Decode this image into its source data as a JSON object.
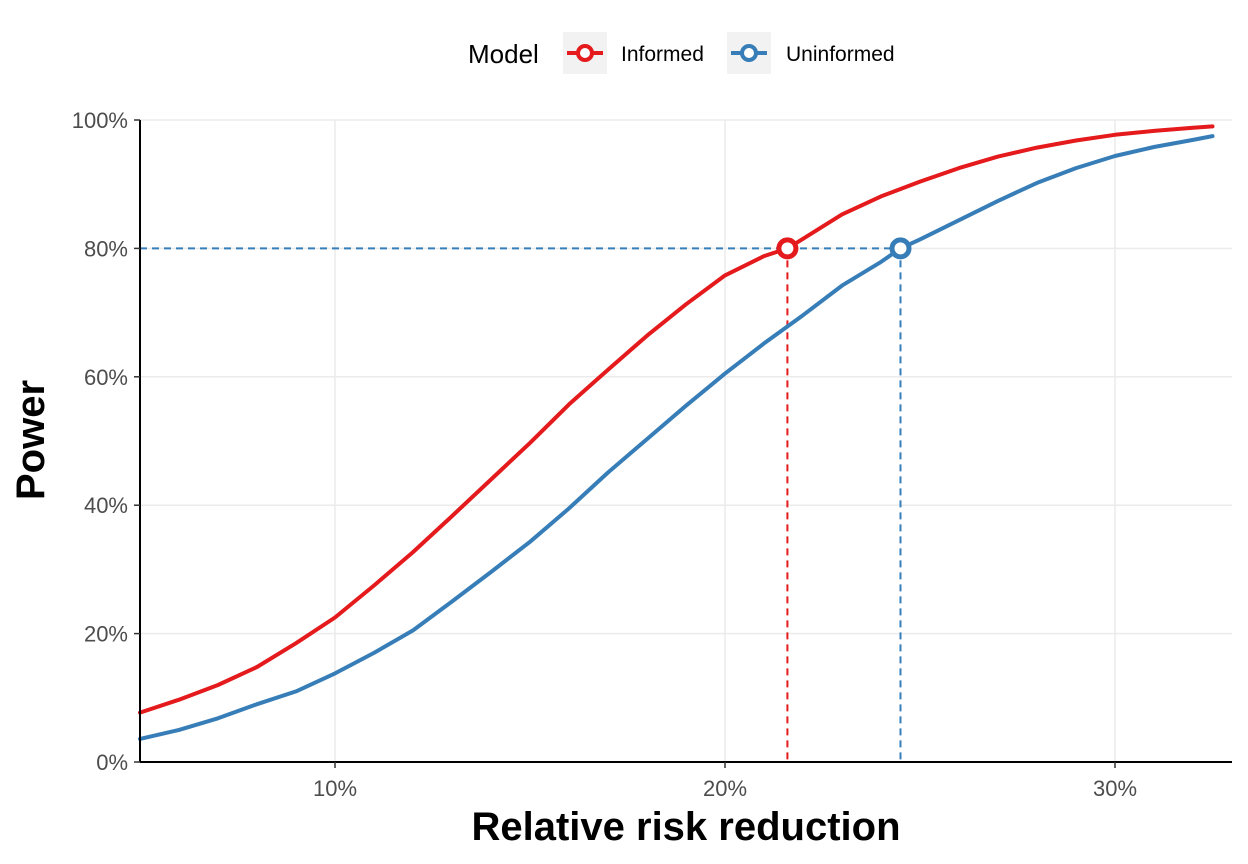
{
  "chart_data": {
    "type": "line",
    "title": "",
    "xlabel": "Relative risk reduction",
    "ylabel": "Power",
    "xlim": [
      0.05,
      0.33
    ],
    "ylim": [
      0,
      1
    ],
    "x_ticks": [
      0.1,
      0.2,
      0.3
    ],
    "x_tick_labels": [
      "10%",
      "20%",
      "30%"
    ],
    "y_ticks": [
      0,
      0.2,
      0.4,
      0.6,
      0.8,
      1.0
    ],
    "y_tick_labels": [
      "0%",
      "20%",
      "40%",
      "60%",
      "80%",
      "100%"
    ],
    "grid": true,
    "legend": {
      "title": "Model",
      "position": "top"
    },
    "reference_line": {
      "y": 0.8,
      "style": "dashed"
    },
    "series": [
      {
        "name": "Informed",
        "color": "#e41a1c",
        "x": [
          0.05,
          0.06,
          0.07,
          0.08,
          0.09,
          0.1,
          0.11,
          0.12,
          0.13,
          0.14,
          0.15,
          0.16,
          0.17,
          0.18,
          0.19,
          0.2,
          0.21,
          0.216,
          0.22,
          0.23,
          0.24,
          0.25,
          0.26,
          0.27,
          0.28,
          0.29,
          0.3,
          0.31,
          0.32,
          0.325
        ],
        "y": [
          0.077,
          0.097,
          0.12,
          0.148,
          0.185,
          0.225,
          0.275,
          0.327,
          0.383,
          0.44,
          0.497,
          0.557,
          0.611,
          0.664,
          0.713,
          0.758,
          0.788,
          0.8,
          0.815,
          0.853,
          0.881,
          0.904,
          0.925,
          0.943,
          0.957,
          0.968,
          0.977,
          0.983,
          0.988,
          0.99
        ],
        "highlight": {
          "x": 0.216,
          "y": 0.8
        }
      },
      {
        "name": "Uninformed",
        "color": "#377eb8",
        "x": [
          0.05,
          0.06,
          0.07,
          0.08,
          0.09,
          0.1,
          0.11,
          0.12,
          0.13,
          0.14,
          0.15,
          0.16,
          0.17,
          0.18,
          0.19,
          0.2,
          0.21,
          0.22,
          0.23,
          0.24,
          0.245,
          0.25,
          0.26,
          0.27,
          0.28,
          0.29,
          0.3,
          0.31,
          0.32,
          0.325
        ],
        "y": [
          0.036,
          0.05,
          0.068,
          0.09,
          0.11,
          0.138,
          0.17,
          0.205,
          0.25,
          0.296,
          0.343,
          0.395,
          0.451,
          0.503,
          0.555,
          0.605,
          0.652,
          0.696,
          0.742,
          0.779,
          0.8,
          0.814,
          0.844,
          0.874,
          0.902,
          0.925,
          0.944,
          0.958,
          0.969,
          0.975
        ],
        "highlight": {
          "x": 0.245,
          "y": 0.8
        }
      }
    ]
  }
}
